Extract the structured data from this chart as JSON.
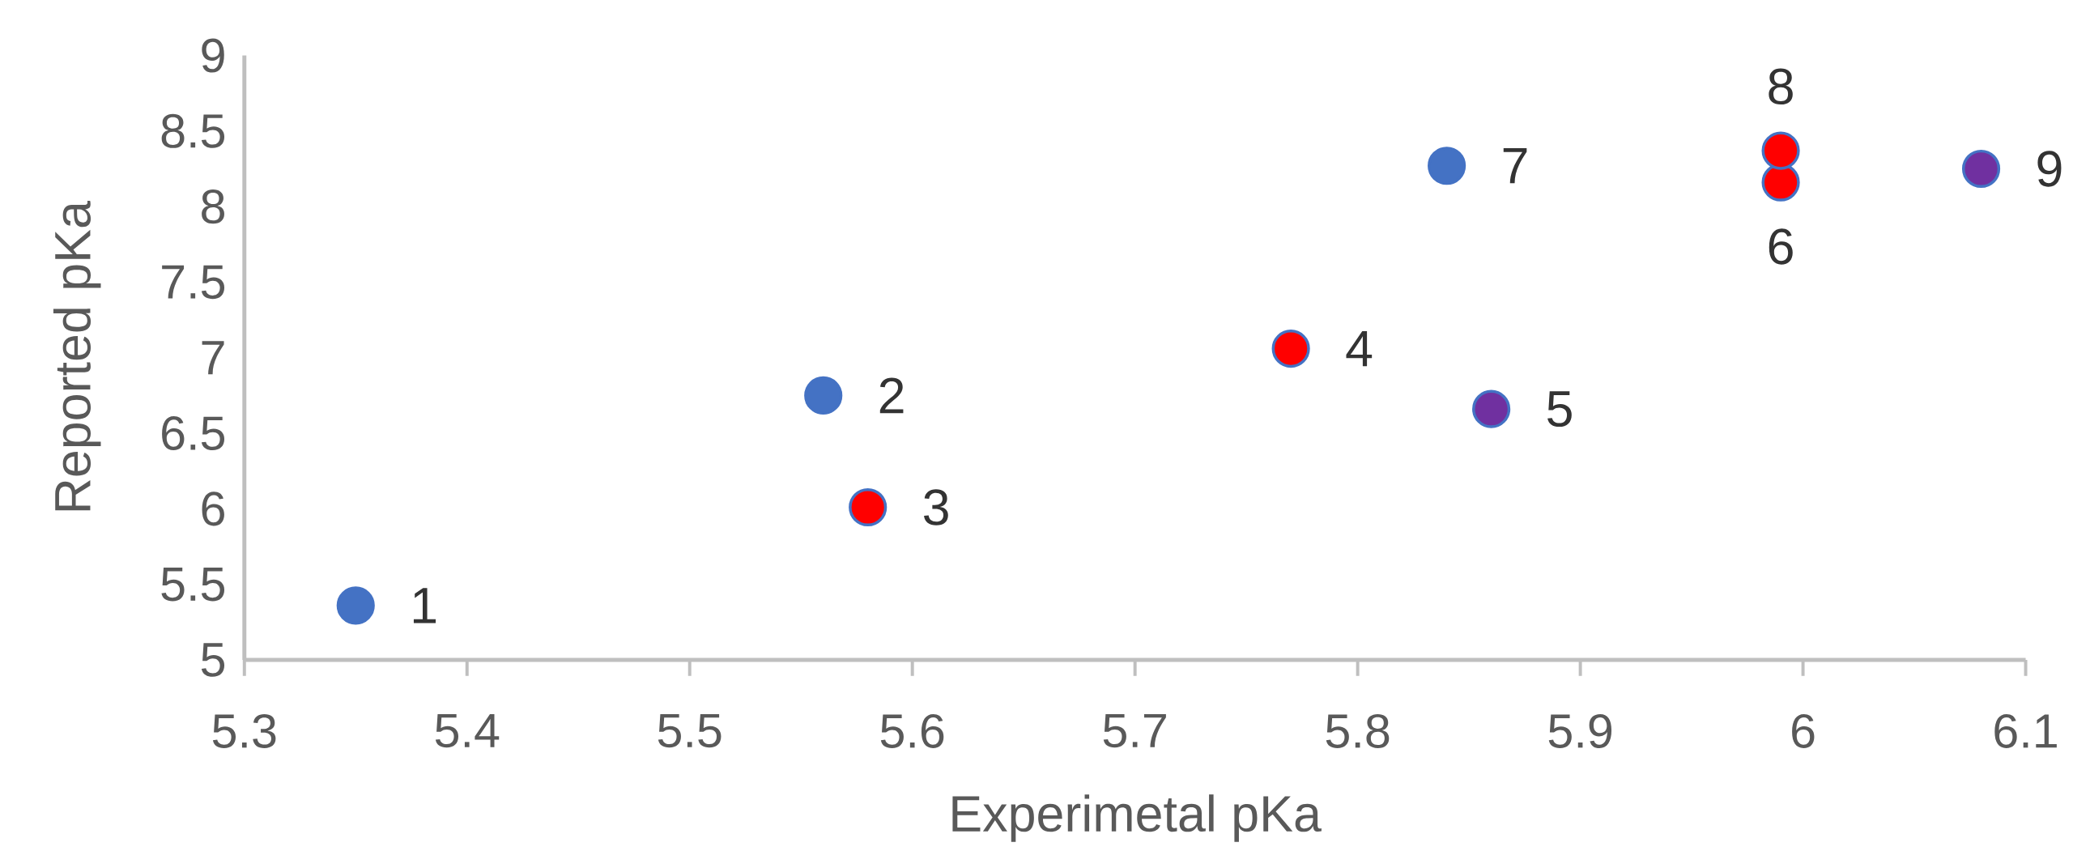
{
  "chart_data": {
    "type": "scatter",
    "xlabel": "Experimetal pKa",
    "ylabel": "Reported pKa",
    "x": [
      5.35,
      5.56,
      5.58,
      5.77,
      5.86,
      5.99,
      5.84,
      5.99,
      6.08
    ],
    "values": [
      5.36,
      6.75,
      6.01,
      7.06,
      6.66,
      8.16,
      8.27,
      8.37,
      8.25
    ],
    "colors": [
      "#4472c4",
      "#4472c4",
      "#ff0000",
      "#ff0000",
      "#7030a0",
      "#ff0000",
      "#4472c4",
      "#ff0000",
      "#7030a0"
    ],
    "marker": "circle",
    "xlim": [
      5.3,
      6.1
    ],
    "xticks": [
      5.3,
      5.4,
      5.5,
      5.6,
      5.7,
      5.8,
      5.9,
      6,
      6.1
    ],
    "ylim": [
      5,
      9
    ],
    "yticks": [
      5,
      5.5,
      6,
      6.5,
      7,
      7.5,
      8,
      8.5,
      9
    ],
    "annotations": [
      {
        "text": "1",
        "x": 5.35,
        "y": 5.36
      },
      {
        "text": "2",
        "x": 5.56,
        "y": 6.75
      },
      {
        "text": "3",
        "x": 5.58,
        "y": 6.01
      },
      {
        "text": "4",
        "x": 5.77,
        "y": 7.06
      },
      {
        "text": "5",
        "x": 5.86,
        "y": 6.66
      },
      {
        "text": "6",
        "x": 5.99,
        "y": 8.16
      },
      {
        "text": "7",
        "x": 5.84,
        "y": 8.27
      },
      {
        "text": "8",
        "x": 5.99,
        "y": 8.37
      },
      {
        "text": "9",
        "x": 6.08,
        "y": 8.25
      }
    ]
  }
}
